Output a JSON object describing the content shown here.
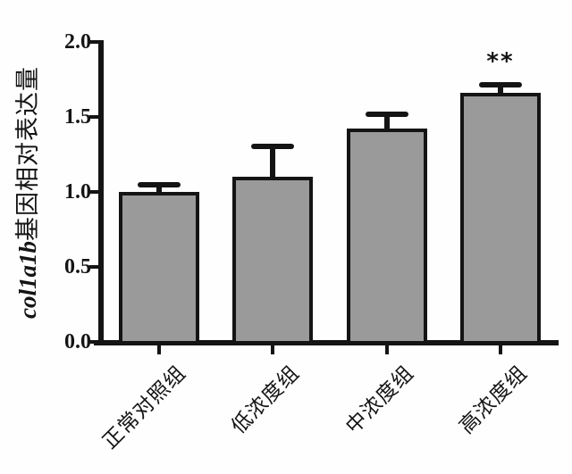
{
  "figure": {
    "background": "#fefefe",
    "axis_color": "#141414"
  },
  "chart_data": {
    "type": "bar",
    "title": "",
    "ylabel_gene": "col1a1b",
    "ylabel_rest": "基因相对表达量",
    "xlabel": "",
    "categories": [
      "正常对照组",
      "低浓度组",
      "中浓度组",
      "高浓度组"
    ],
    "values": [
      1.0,
      1.1,
      1.42,
      1.66
    ],
    "errors": [
      0.04,
      0.2,
      0.09,
      0.05
    ],
    "error_direction": "upper",
    "ylim": [
      0.0,
      2.0
    ],
    "yticks": [
      2.0,
      1.5,
      1.0,
      0.5,
      0.0
    ],
    "ytick_labels": [
      "2.0",
      "1.5",
      "1.0",
      "0.5",
      "0.0"
    ],
    "annotations": [
      {
        "text": "**",
        "category_index": 3,
        "meaning": "significance-marker"
      }
    ],
    "bar_fill": "#9a9a9a",
    "bar_border": "#141414",
    "grid": false,
    "legend": null
  }
}
